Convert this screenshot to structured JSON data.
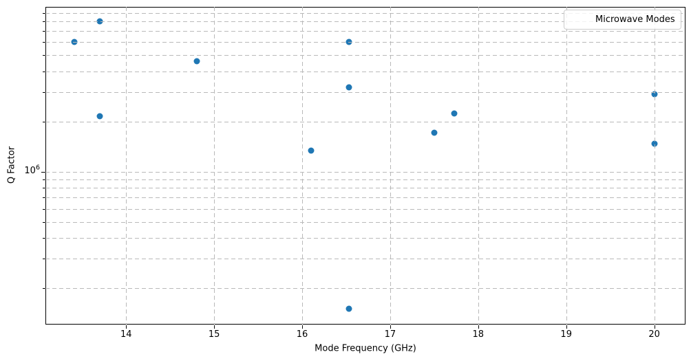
{
  "chart_data": {
    "type": "scatter",
    "title": "",
    "xlabel": "Mode Frequency (GHz)",
    "ylabel": "Q Factor",
    "xscale": "linear",
    "yscale": "log",
    "xlim": [
      13.083,
      20.355
    ],
    "ylim": [
      121000,
      9770000
    ],
    "xticks": [
      14,
      15,
      16,
      17,
      18,
      19,
      20
    ],
    "xtick_labels": [
      "14",
      "15",
      "16",
      "17",
      "18",
      "19",
      "20"
    ],
    "ytick_major": {
      "value": 1000000,
      "label_base": "10",
      "label_exp": "6"
    },
    "ytick_minor_values": [
      200000,
      300000,
      400000,
      500000,
      600000,
      700000,
      800000,
      900000,
      2000000,
      3000000,
      4000000,
      5000000,
      6000000,
      7000000,
      8000000,
      9000000
    ],
    "grid": {
      "which": "both",
      "style": "dashed",
      "color": "#b9b9b9",
      "over_points": true
    },
    "legend": {
      "position": "upper right",
      "entries": [
        "Microwave Modes"
      ]
    },
    "series": [
      {
        "name": "Microwave Modes",
        "marker": "circle",
        "color": "#1f77b4",
        "points": [
          {
            "x": 13.41,
            "y": 6000000
          },
          {
            "x": 13.7,
            "y": 8000000
          },
          {
            "x": 13.7,
            "y": 2150000
          },
          {
            "x": 14.8,
            "y": 4600000
          },
          {
            "x": 16.1,
            "y": 1340000
          },
          {
            "x": 16.53,
            "y": 6000000
          },
          {
            "x": 16.53,
            "y": 3200000
          },
          {
            "x": 16.53,
            "y": 150000
          },
          {
            "x": 17.5,
            "y": 1720000
          },
          {
            "x": 17.73,
            "y": 2230000
          },
          {
            "x": 20.0,
            "y": 2930000
          },
          {
            "x": 20.0,
            "y": 1480000
          }
        ]
      }
    ]
  },
  "colors": {
    "marker": "#1f77b4",
    "grid": "#b9b9b9",
    "spine": "#000000",
    "legend_border": "#cccccc",
    "background": "#ffffff"
  }
}
